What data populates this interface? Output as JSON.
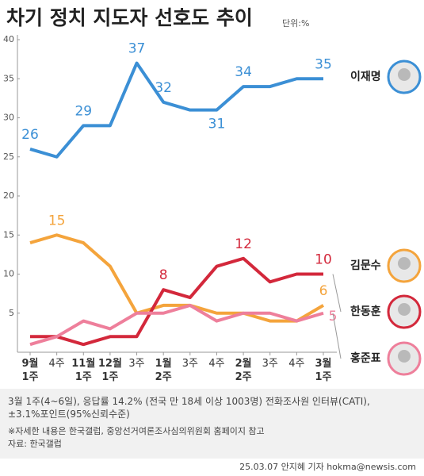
{
  "chart_data": {
    "type": "line",
    "title": "차기 정치 지도자 선호도 추이",
    "subtitle": "단위:%",
    "categories": [
      "9월\n1주",
      "4주",
      "11월\n1주",
      "12월\n1주",
      "3주",
      "1월\n2주",
      "3주",
      "4주",
      "2월\n2주",
      "3주",
      "4주",
      "3월\n1주"
    ],
    "ylim": [
      0,
      40
    ],
    "yticks": [
      5,
      10,
      15,
      20,
      25,
      30,
      35,
      40
    ],
    "series": [
      {
        "name": "이재명",
        "color": "#3b8fd5",
        "values": [
          26,
          25,
          29,
          29,
          37,
          32,
          31,
          31,
          34,
          34,
          35,
          35
        ],
        "value_labels": [
          "26",
          null,
          "29",
          null,
          "37",
          "32",
          null,
          "31",
          "34",
          null,
          null,
          "35"
        ]
      },
      {
        "name": "김문수",
        "color": "#f4a43c",
        "values": [
          14,
          15,
          14,
          11,
          5,
          6,
          6,
          5,
          5,
          4,
          4,
          6
        ],
        "value_labels": [
          null,
          "15",
          null,
          null,
          null,
          null,
          null,
          null,
          null,
          null,
          null,
          "6"
        ]
      },
      {
        "name": "한동훈",
        "color": "#d3283b",
        "values": [
          2,
          2,
          1,
          2,
          2,
          8,
          7,
          11,
          12,
          9,
          10,
          10
        ],
        "value_labels": [
          null,
          null,
          null,
          null,
          null,
          "8",
          null,
          null,
          "12",
          null,
          null,
          "10"
        ]
      },
      {
        "name": "홍준표",
        "color": "#ee7f9b",
        "values": [
          1,
          2,
          4,
          3,
          5,
          5,
          6,
          4,
          5,
          5,
          4,
          5
        ],
        "value_labels": [
          null,
          null,
          null,
          null,
          null,
          null,
          null,
          null,
          null,
          null,
          null,
          "5"
        ]
      }
    ],
    "notes": [
      "3월 1주(4~6일), 응답률 14.2% (전국 만 18세 이상 1003명) 전화조사원 인터뷰(CATI),",
      "±3.1%포인트(95%신뢰수준)",
      "※자세한 내용은 한국갤럽, 중앙선거여론조사심의위원회 홈페이지 참고",
      "자료: 한국갤럽"
    ],
    "credit": "25.03.07 안지혜 기자 hokma@newsis.com"
  }
}
